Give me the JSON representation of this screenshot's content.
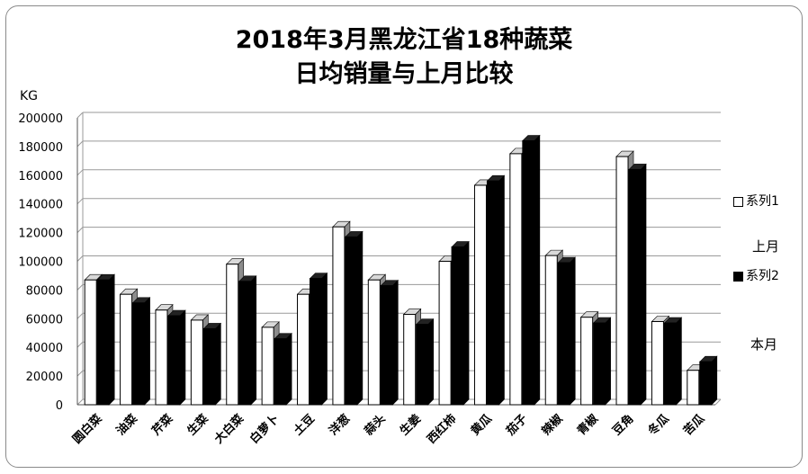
{
  "chart_data": {
    "type": "bar",
    "title": [
      "2018年3月黑龙江省18种蔬菜",
      "日均销量与上月比较"
    ],
    "ylabel": "KG",
    "ylim": [
      0,
      200000
    ],
    "yticks": [
      0,
      20000,
      40000,
      60000,
      80000,
      100000,
      120000,
      140000,
      160000,
      180000,
      200000
    ],
    "grid": true,
    "legend_position": "right",
    "categories": [
      "圆白菜",
      "油菜",
      "芹菜",
      "生菜",
      "大白菜",
      "白萝卜",
      "土豆",
      "洋葱",
      "蒜头",
      "生姜",
      "西红柿",
      "黄瓜",
      "茄子",
      "辣椒",
      "青椒",
      "豆角",
      "冬瓜",
      "苦瓜"
    ],
    "series": [
      {
        "name": "系列1",
        "color": "#ffffff",
        "values": [
          87000,
          77000,
          66000,
          59000,
          98000,
          54000,
          77000,
          124000,
          87000,
          63000,
          100000,
          153000,
          175000,
          104000,
          61000,
          173000,
          58000,
          24000
        ]
      },
      {
        "name": "系列2",
        "color": "#000000",
        "values": [
          87000,
          71000,
          62000,
          53000,
          86000,
          46000,
          88000,
          117000,
          83000,
          56000,
          110000,
          156000,
          184000,
          99000,
          57000,
          164000,
          57000,
          30000
        ]
      }
    ],
    "annotations": [
      "上月",
      "本月"
    ]
  }
}
